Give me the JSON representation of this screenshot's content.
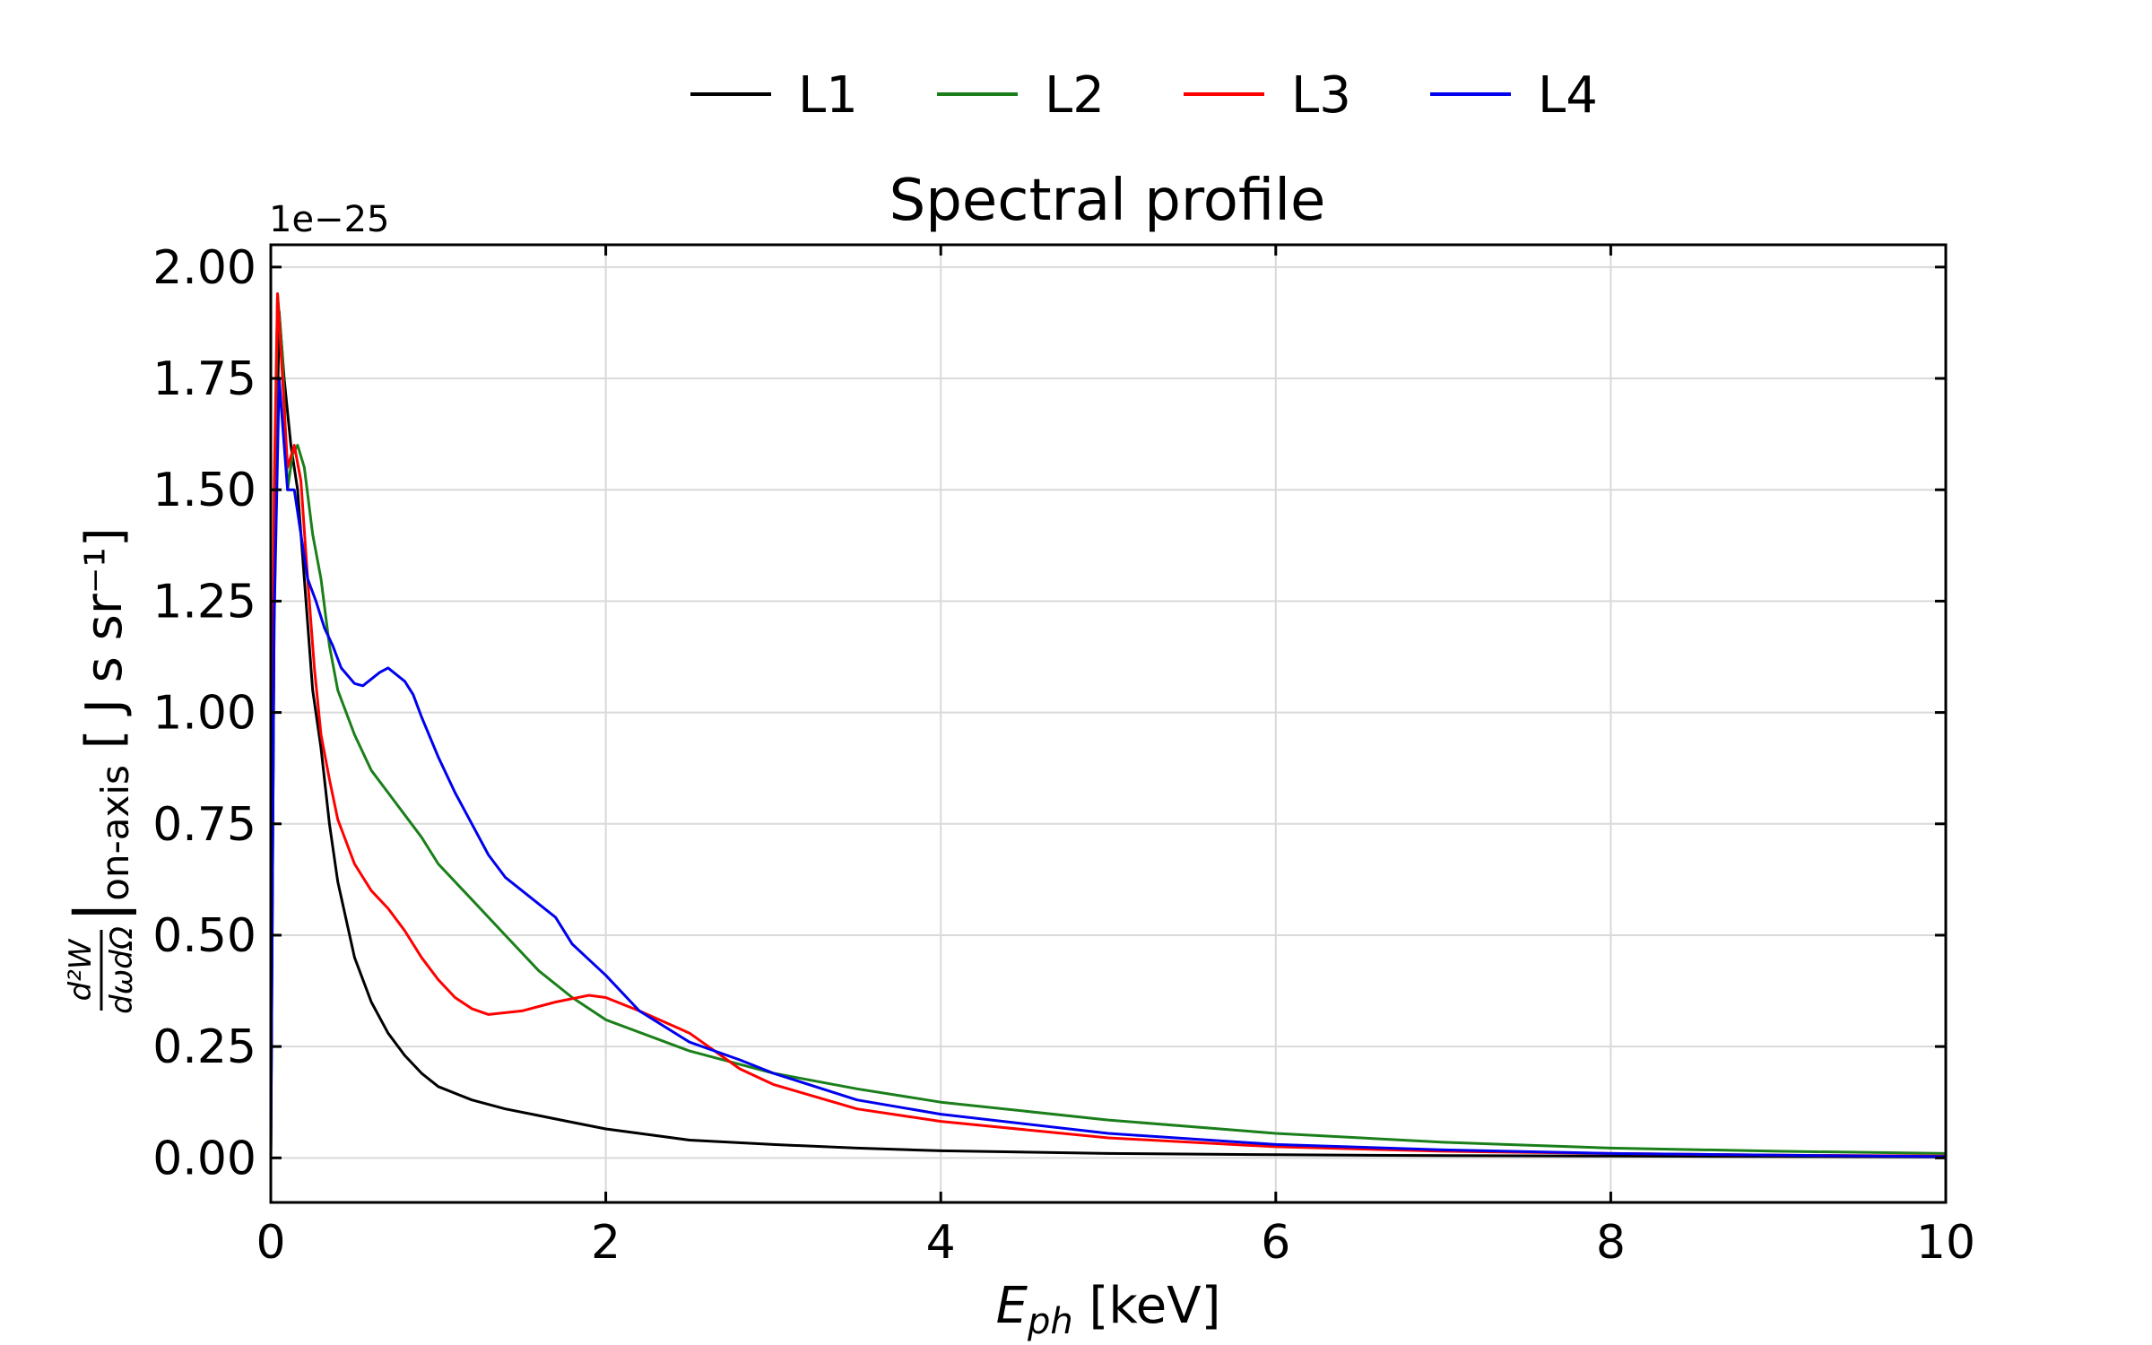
{
  "chart_data": {
    "type": "line",
    "title": "Spectral profile",
    "xlabel": "E_ph [keV]",
    "xlabel_main": "E",
    "xlabel_sub": "ph",
    "xlabel_unit": " [keV]",
    "ylabel_fraction_num": "d²W",
    "ylabel_fraction_den": "dωdΩ",
    "ylabel_bar": "|",
    "ylabel_sub": "on-axis",
    "ylabel_unit": " [ J s sr⁻¹]",
    "y_offset_label": "1e−25",
    "y_multiplier": 1e-25,
    "xlim": [
      0,
      10
    ],
    "ylim": [
      -0.1,
      2.05
    ],
    "x_ticks": [
      0,
      2,
      4,
      6,
      8,
      10
    ],
    "x_tick_labels": [
      "0",
      "2",
      "4",
      "6",
      "8",
      "10"
    ],
    "y_ticks": [
      0,
      0.25,
      0.5,
      0.75,
      1.0,
      1.25,
      1.5,
      1.75,
      2.0
    ],
    "y_tick_labels": [
      "0.00",
      "0.25",
      "0.50",
      "0.75",
      "1.00",
      "1.25",
      "1.50",
      "1.75",
      "2.00"
    ],
    "grid": true,
    "legend_position": "top-center",
    "series": [
      {
        "name": "L1",
        "color": "#000000",
        "points": [
          [
            0,
            0
          ],
          [
            0.02,
            1.2
          ],
          [
            0.05,
            1.9
          ],
          [
            0.08,
            1.75
          ],
          [
            0.12,
            1.6
          ],
          [
            0.16,
            1.5
          ],
          [
            0.2,
            1.3
          ],
          [
            0.25,
            1.05
          ],
          [
            0.3,
            0.92
          ],
          [
            0.35,
            0.75
          ],
          [
            0.4,
            0.62
          ],
          [
            0.5,
            0.45
          ],
          [
            0.6,
            0.35
          ],
          [
            0.7,
            0.28
          ],
          [
            0.8,
            0.23
          ],
          [
            0.9,
            0.19
          ],
          [
            1.0,
            0.16
          ],
          [
            1.2,
            0.13
          ],
          [
            1.4,
            0.11
          ],
          [
            1.6,
            0.095
          ],
          [
            1.8,
            0.08
          ],
          [
            2.0,
            0.065
          ],
          [
            2.5,
            0.04
          ],
          [
            3.0,
            0.03
          ],
          [
            3.5,
            0.022
          ],
          [
            4.0,
            0.016
          ],
          [
            5.0,
            0.01
          ],
          [
            6.0,
            0.007
          ],
          [
            7.0,
            0.005
          ],
          [
            8.0,
            0.004
          ],
          [
            9.0,
            0.003
          ],
          [
            10.0,
            0.002
          ]
        ]
      },
      {
        "name": "L2",
        "color": "#1a7f1a",
        "points": [
          [
            0,
            0
          ],
          [
            0.02,
            1.4
          ],
          [
            0.04,
            1.94
          ],
          [
            0.07,
            1.8
          ],
          [
            0.1,
            1.5
          ],
          [
            0.13,
            1.58
          ],
          [
            0.16,
            1.6
          ],
          [
            0.2,
            1.55
          ],
          [
            0.25,
            1.4
          ],
          [
            0.3,
            1.3
          ],
          [
            0.35,
            1.15
          ],
          [
            0.4,
            1.05
          ],
          [
            0.5,
            0.95
          ],
          [
            0.6,
            0.87
          ],
          [
            0.7,
            0.82
          ],
          [
            0.8,
            0.77
          ],
          [
            0.9,
            0.72
          ],
          [
            1.0,
            0.66
          ],
          [
            1.2,
            0.58
          ],
          [
            1.4,
            0.5
          ],
          [
            1.6,
            0.42
          ],
          [
            1.8,
            0.36
          ],
          [
            2.0,
            0.31
          ],
          [
            2.5,
            0.24
          ],
          [
            3.0,
            0.19
          ],
          [
            3.5,
            0.155
          ],
          [
            4.0,
            0.125
          ],
          [
            5.0,
            0.085
          ],
          [
            6.0,
            0.055
          ],
          [
            7.0,
            0.035
          ],
          [
            8.0,
            0.022
          ],
          [
            9.0,
            0.015
          ],
          [
            10.0,
            0.01
          ]
        ]
      },
      {
        "name": "L3",
        "color": "#ff0000",
        "points": [
          [
            0,
            0
          ],
          [
            0.02,
            1.5
          ],
          [
            0.04,
            1.94
          ],
          [
            0.07,
            1.75
          ],
          [
            0.1,
            1.55
          ],
          [
            0.14,
            1.6
          ],
          [
            0.18,
            1.52
          ],
          [
            0.22,
            1.3
          ],
          [
            0.26,
            1.1
          ],
          [
            0.3,
            0.95
          ],
          [
            0.35,
            0.85
          ],
          [
            0.4,
            0.76
          ],
          [
            0.5,
            0.66
          ],
          [
            0.6,
            0.6
          ],
          [
            0.7,
            0.56
          ],
          [
            0.8,
            0.51
          ],
          [
            0.9,
            0.45
          ],
          [
            1.0,
            0.4
          ],
          [
            1.1,
            0.36
          ],
          [
            1.2,
            0.335
          ],
          [
            1.3,
            0.322
          ],
          [
            1.5,
            0.33
          ],
          [
            1.7,
            0.35
          ],
          [
            1.9,
            0.365
          ],
          [
            2.0,
            0.36
          ],
          [
            2.2,
            0.33
          ],
          [
            2.5,
            0.28
          ],
          [
            2.8,
            0.2
          ],
          [
            3.0,
            0.165
          ],
          [
            3.5,
            0.11
          ],
          [
            4.0,
            0.082
          ],
          [
            5.0,
            0.045
          ],
          [
            6.0,
            0.025
          ],
          [
            7.0,
            0.015
          ],
          [
            8.0,
            0.01
          ],
          [
            9.0,
            0.006
          ],
          [
            10.0,
            0.004
          ]
        ]
      },
      {
        "name": "L4",
        "color": "#0000ee",
        "points": [
          [
            0,
            0
          ],
          [
            0.02,
            1.2
          ],
          [
            0.05,
            1.75
          ],
          [
            0.08,
            1.6
          ],
          [
            0.1,
            1.5
          ],
          [
            0.14,
            1.5
          ],
          [
            0.18,
            1.4
          ],
          [
            0.22,
            1.3
          ],
          [
            0.27,
            1.25
          ],
          [
            0.32,
            1.19
          ],
          [
            0.37,
            1.15
          ],
          [
            0.42,
            1.1
          ],
          [
            0.5,
            1.065
          ],
          [
            0.55,
            1.06
          ],
          [
            0.6,
            1.075
          ],
          [
            0.65,
            1.09
          ],
          [
            0.7,
            1.1
          ],
          [
            0.8,
            1.07
          ],
          [
            0.85,
            1.04
          ],
          [
            0.9,
            0.99
          ],
          [
            1.0,
            0.9
          ],
          [
            1.1,
            0.82
          ],
          [
            1.2,
            0.75
          ],
          [
            1.3,
            0.68
          ],
          [
            1.4,
            0.63
          ],
          [
            1.5,
            0.6
          ],
          [
            1.6,
            0.57
          ],
          [
            1.7,
            0.54
          ],
          [
            1.8,
            0.48
          ],
          [
            1.9,
            0.445
          ],
          [
            2.0,
            0.41
          ],
          [
            2.2,
            0.33
          ],
          [
            2.5,
            0.26
          ],
          [
            2.8,
            0.22
          ],
          [
            3.0,
            0.19
          ],
          [
            3.5,
            0.13
          ],
          [
            4.0,
            0.098
          ],
          [
            5.0,
            0.055
          ],
          [
            6.0,
            0.03
          ],
          [
            7.0,
            0.018
          ],
          [
            8.0,
            0.01
          ],
          [
            9.0,
            0.006
          ],
          [
            10.0,
            0.003
          ]
        ]
      }
    ]
  }
}
